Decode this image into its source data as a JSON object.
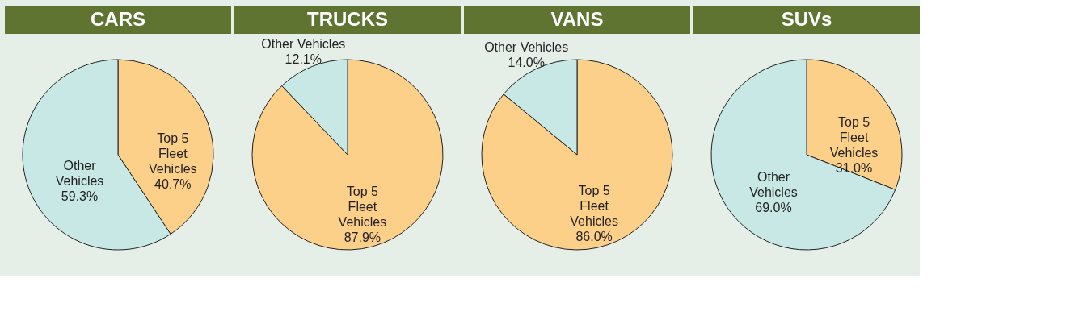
{
  "chart_data": [
    {
      "type": "pie",
      "title": "CARS",
      "categories": [
        "Top 5 Fleet Vehicles",
        "Other Vehicles"
      ],
      "values": [
        40.7,
        59.3
      ],
      "colors": [
        "#fdd08a",
        "#c8e8e6"
      ],
      "value_labels": [
        "40.7%",
        "59.3%"
      ]
    },
    {
      "type": "pie",
      "title": "TRUCKS",
      "categories": [
        "Top 5 Fleet Vehicles",
        "Other Vehicles"
      ],
      "values": [
        87.9,
        12.1
      ],
      "colors": [
        "#fdd08a",
        "#c8e8e6"
      ],
      "value_labels": [
        "87.9%",
        "12.1%"
      ]
    },
    {
      "type": "pie",
      "title": "VANS",
      "categories": [
        "Top 5 Fleet Vehicles",
        "Other Vehicles"
      ],
      "values": [
        86.0,
        14.0
      ],
      "colors": [
        "#fdd08a",
        "#c8e8e6"
      ],
      "value_labels": [
        "86.0%",
        "14.0%"
      ]
    },
    {
      "type": "pie",
      "title": "SUVs",
      "categories": [
        "Top 5 Fleet Vehicles",
        "Other Vehicles"
      ],
      "values": [
        31.0,
        69.0
      ],
      "colors": [
        "#fdd08a",
        "#c8e8e6"
      ],
      "value_labels": [
        "31.0%",
        "69.0%"
      ]
    }
  ]
}
